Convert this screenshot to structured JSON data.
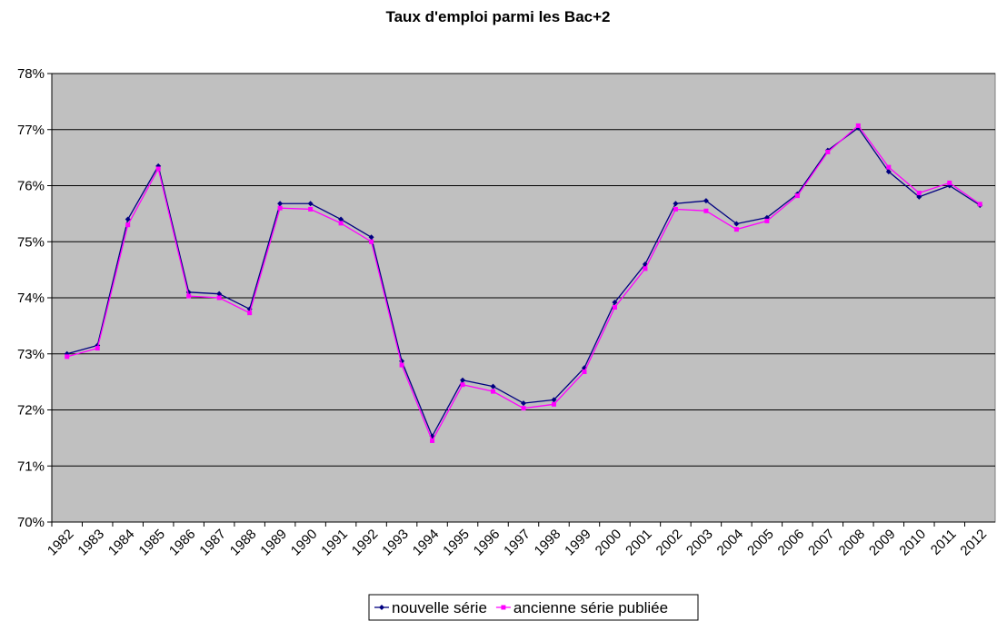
{
  "chart_data": {
    "type": "line",
    "title": "Taux d'emploi parmi les Bac+2",
    "categories": [
      "1982",
      "1983",
      "1984",
      "1985",
      "1986",
      "1987",
      "1988",
      "1989",
      "1990",
      "1991",
      "1992",
      "1993",
      "1994",
      "1995",
      "1996",
      "1997",
      "1998",
      "1999",
      "2000",
      "2001",
      "2002",
      "2003",
      "2004",
      "2005",
      "2006",
      "2007",
      "2008",
      "2009",
      "2010",
      "2011",
      "2012"
    ],
    "series": [
      {
        "name": "nouvelle série",
        "color": "#000080",
        "values": [
          73.0,
          73.15,
          75.4,
          76.35,
          74.1,
          74.07,
          73.8,
          75.68,
          75.68,
          75.4,
          75.08,
          72.87,
          71.53,
          72.53,
          72.42,
          72.12,
          72.18,
          72.75,
          73.92,
          74.6,
          75.68,
          75.73,
          75.32,
          75.43,
          75.85,
          76.63,
          77.03,
          76.25,
          75.8,
          76.0,
          75.65
        ]
      },
      {
        "name": "ancienne série publiée",
        "color": "#ff00ff",
        "values": [
          72.95,
          73.1,
          75.3,
          76.3,
          74.03,
          74.0,
          73.73,
          75.6,
          75.58,
          75.33,
          75.0,
          72.8,
          71.45,
          72.45,
          72.33,
          72.03,
          72.1,
          72.68,
          73.83,
          74.52,
          75.58,
          75.55,
          75.22,
          75.37,
          75.82,
          76.6,
          77.07,
          76.33,
          75.87,
          76.05,
          75.67
        ]
      }
    ],
    "ylim": [
      70,
      78
    ],
    "yticks": [
      {
        "value": 70,
        "label": "70%"
      },
      {
        "value": 71,
        "label": "71%"
      },
      {
        "value": 72,
        "label": "72%"
      },
      {
        "value": 73,
        "label": "73%"
      },
      {
        "value": 74,
        "label": "74%"
      },
      {
        "value": 75,
        "label": "75%"
      },
      {
        "value": 76,
        "label": "76%"
      },
      {
        "value": 77,
        "label": "77%"
      },
      {
        "value": 78,
        "label": "78%"
      }
    ],
    "grid": true,
    "legend": "bottom"
  }
}
